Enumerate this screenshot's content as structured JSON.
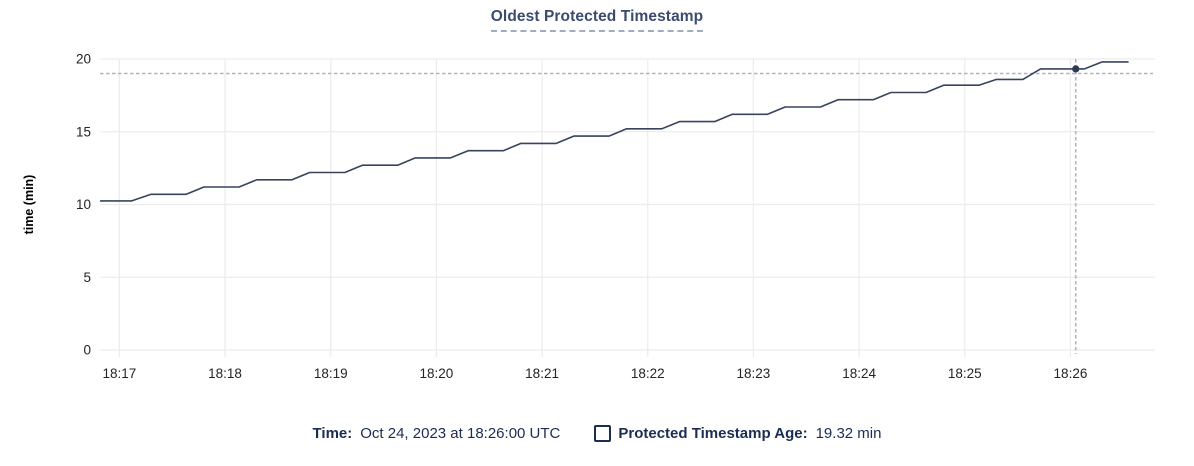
{
  "title": "Oldest Protected Timestamp",
  "legend": {
    "time_label": "Time:",
    "time_value": "Oct 24, 2023 at 18:26:00 UTC",
    "series_checkbox_icon": "unchecked-square-icon",
    "series_label": "Protected Timestamp Age:",
    "series_value": "19.32 min"
  },
  "chart_data": {
    "type": "line",
    "title": "Oldest Protected Timestamp",
    "xlabel": "",
    "ylabel": "time (min)",
    "ylim": [
      0,
      20
    ],
    "y_ticks": [
      0,
      5,
      10,
      15,
      20
    ],
    "grid": true,
    "legend_position": "bottom",
    "t0_label": "18:17:00 UTC",
    "x_domain_s": [
      -11,
      588
    ],
    "x_ticks": [
      {
        "label": "18:17",
        "t": 0
      },
      {
        "label": "18:18",
        "t": 60
      },
      {
        "label": "18:19",
        "t": 120
      },
      {
        "label": "18:20",
        "t": 180
      },
      {
        "label": "18:21",
        "t": 240
      },
      {
        "label": "18:22",
        "t": 300
      },
      {
        "label": "18:23",
        "t": 360
      },
      {
        "label": "18:24",
        "t": 420
      },
      {
        "label": "18:25",
        "t": 480
      },
      {
        "label": "18:26",
        "t": 540
      }
    ],
    "series": [
      {
        "name": "Protected Timestamp Age",
        "unit": "min",
        "points": [
          [
            -11,
            10.25
          ],
          [
            7,
            10.25
          ],
          [
            18,
            10.7
          ],
          [
            38,
            10.7
          ],
          [
            48,
            11.2
          ],
          [
            68,
            11.2
          ],
          [
            78,
            11.7
          ],
          [
            98,
            11.7
          ],
          [
            108,
            12.2
          ],
          [
            128,
            12.2
          ],
          [
            138,
            12.7
          ],
          [
            158,
            12.7
          ],
          [
            168,
            13.2
          ],
          [
            188,
            13.2
          ],
          [
            198,
            13.7
          ],
          [
            218,
            13.7
          ],
          [
            228,
            14.2
          ],
          [
            248,
            14.2
          ],
          [
            258,
            14.7
          ],
          [
            278,
            14.7
          ],
          [
            288,
            15.2
          ],
          [
            308,
            15.2
          ],
          [
            318,
            15.7
          ],
          [
            338,
            15.7
          ],
          [
            348,
            16.2
          ],
          [
            368,
            16.2
          ],
          [
            378,
            16.7
          ],
          [
            398,
            16.7
          ],
          [
            408,
            17.2
          ],
          [
            428,
            17.2
          ],
          [
            438,
            17.7
          ],
          [
            458,
            17.7
          ],
          [
            468,
            18.2
          ],
          [
            488,
            18.2
          ],
          [
            498,
            18.6
          ],
          [
            513,
            18.6
          ],
          [
            523,
            19.32
          ],
          [
            548,
            19.32
          ],
          [
            558,
            19.8
          ],
          [
            573,
            19.8
          ]
        ]
      }
    ],
    "crosshair": {
      "time_s": 543,
      "time_label": "Oct 24, 2023 at 18:26:00 UTC",
      "age_min": 19.32,
      "hline_min": 19.0
    },
    "colors": {
      "line": "#37445c",
      "dot": "#2e3b52",
      "crosshair": "#a9b6c3",
      "grid": "#ececec",
      "tick_text": "#242424",
      "axis_label_text": "#000000",
      "title_text": "#3a4c6e",
      "legend_text": "#1b2d52"
    }
  }
}
